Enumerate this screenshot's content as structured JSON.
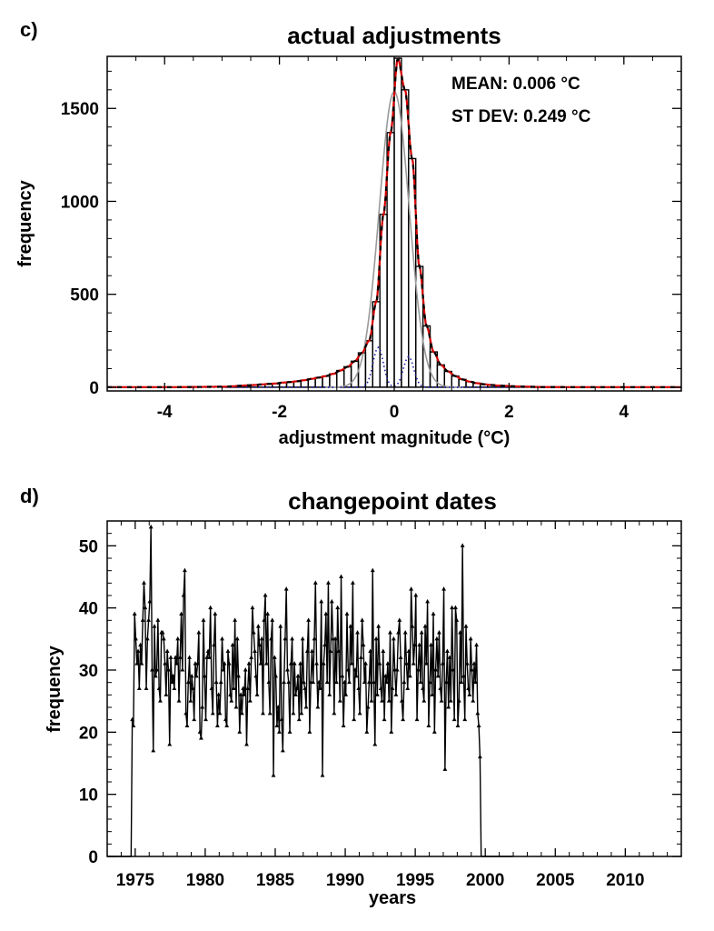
{
  "colors": {
    "axis": "#000000",
    "histogram": "#000000",
    "fit_total": "#d40000",
    "fit_dashes": "#000000",
    "gaussian_core": "#9a9a9a",
    "dotted_components": "#1a1aa8",
    "timeseries": "#000000"
  },
  "chart_data": [
    {
      "panel": "c)",
      "type": "bar",
      "title": "actual adjustments",
      "xlabel": "adjustment magnitude (°C)",
      "ylabel": "frequency",
      "xlim": [
        -5,
        5
      ],
      "ylim": [
        -20,
        1780
      ],
      "xticks": [
        -4,
        -2,
        0,
        2,
        4
      ],
      "yticks": [
        0,
        500,
        1000,
        1500
      ],
      "grid": false,
      "annotations": [
        "MEAN:  0.006 °C",
        "ST DEV:  0.249 °C"
      ],
      "bin_width": 0.125,
      "bins_left_edge": [
        -3.0,
        -2.875,
        -2.75,
        -2.625,
        -2.5,
        -2.375,
        -2.25,
        -2.125,
        -2.0,
        -1.875,
        -1.75,
        -1.625,
        -1.5,
        -1.375,
        -1.25,
        -1.125,
        -1.0,
        -0.875,
        -0.75,
        -0.625,
        -0.5,
        -0.375,
        -0.25,
        -0.125,
        0.0,
        0.125,
        0.25,
        0.375,
        0.5,
        0.625,
        0.75,
        0.875,
        1.0,
        1.125,
        1.25,
        1.375,
        1.5,
        1.625,
        1.75,
        1.875,
        2.0,
        2.125,
        2.25,
        2.375,
        2.5
      ],
      "histogram_counts": [
        3,
        5,
        8,
        10,
        12,
        15,
        18,
        20,
        25,
        28,
        32,
        38,
        45,
        52,
        60,
        72,
        90,
        110,
        140,
        185,
        250,
        460,
        930,
        1370,
        1770,
        1600,
        1230,
        650,
        330,
        190,
        120,
        85,
        60,
        42,
        30,
        22,
        16,
        12,
        9,
        7,
        5,
        4,
        3,
        2,
        1
      ],
      "gaussian_core": {
        "mean": 0.0,
        "sd": 0.26,
        "peak": 1590
      },
      "dotted_components": [
        {
          "mean": -0.28,
          "sd": 0.09,
          "peak": 215
        },
        {
          "mean": 0.25,
          "sd": 0.09,
          "peak": 165
        }
      ]
    },
    {
      "panel": "d)",
      "type": "line",
      "title": "changepoint dates",
      "xlabel": "years",
      "ylabel": "frequency",
      "xlim": [
        1973,
        2014
      ],
      "ylim": [
        0,
        54
      ],
      "xticks": [
        1975,
        1980,
        1985,
        1990,
        1995,
        2000,
        2005,
        2010
      ],
      "yticks": [
        0,
        10,
        20,
        30,
        40,
        50
      ],
      "grid": false,
      "start_year": 1973,
      "points_per_year": 12,
      "monthly_counts": [
        0,
        0,
        0,
        0,
        0,
        0,
        0,
        0,
        0,
        0,
        0,
        0,
        0,
        0,
        0,
        0,
        0,
        0,
        0,
        0,
        0,
        22,
        21,
        39,
        35,
        31,
        33,
        27,
        34,
        31,
        38,
        44,
        40,
        27,
        35,
        38,
        41,
        53,
        30,
        17,
        37,
        29,
        30,
        38,
        27,
        25,
        36,
        36,
        35,
        31,
        26,
        33,
        30,
        18,
        32,
        28,
        29,
        27,
        32,
        31,
        35,
        25,
        32,
        39,
        30,
        42,
        46,
        23,
        21,
        28,
        32,
        25,
        29,
        27,
        22,
        31,
        29,
        31,
        36,
        20,
        19,
        24,
        38,
        29,
        22,
        32,
        33,
        32,
        40,
        27,
        23,
        34,
        39,
        28,
        21,
        26,
        23,
        28,
        35,
        30,
        31,
        22,
        21,
        33,
        31,
        26,
        25,
        34,
        27,
        38,
        24,
        35,
        29,
        20,
        26,
        23,
        27,
        26,
        30,
        18,
        27,
        31,
        25,
        32,
        40,
        36,
        33,
        29,
        26,
        37,
        34,
        31,
        35,
        23,
        38,
        42,
        31,
        39,
        28,
        23,
        35,
        38,
        13,
        32,
        29,
        21,
        24,
        20,
        37,
        22,
        17,
        28,
        35,
        43,
        30,
        28,
        20,
        31,
        35,
        23,
        31,
        26,
        27,
        29,
        22,
        31,
        23,
        35,
        28,
        27,
        24,
        33,
        38,
        20,
        28,
        33,
        28,
        35,
        44,
        31,
        24,
        28,
        27,
        41,
        13,
        31,
        34,
        39,
        28,
        44,
        26,
        33,
        41,
        35,
        23,
        35,
        28,
        40,
        33,
        25,
        45,
        29,
        21,
        28,
        26,
        39,
        30,
        28,
        37,
        31,
        44,
        22,
        30,
        29,
        36,
        27,
        23,
        32,
        38,
        34,
        28,
        31,
        20,
        24,
        28,
        33,
        25,
        46,
        28,
        18,
        35,
        26,
        37,
        31,
        27,
        25,
        33,
        22,
        29,
        28,
        31,
        25,
        36,
        20,
        27,
        35,
        30,
        26,
        30,
        36,
        38,
        32,
        25,
        22,
        28,
        36,
        31,
        27,
        33,
        29,
        43,
        37,
        31,
        34,
        42,
        22,
        30,
        34,
        28,
        36,
        27,
        25,
        37,
        31,
        41,
        21,
        28,
        34,
        26,
        39,
        20,
        30,
        35,
        29,
        36,
        27,
        25,
        31,
        43,
        14,
        28,
        33,
        24,
        32,
        25,
        40,
        30,
        22,
        40,
        38,
        21,
        25,
        36,
        28,
        50,
        29,
        22,
        37,
        31,
        27,
        26,
        35,
        30,
        25,
        31,
        28,
        34,
        23,
        21,
        16,
        0,
        0,
        0,
        0,
        0,
        0,
        0,
        0,
        0,
        0,
        0,
        0,
        0,
        0,
        0,
        0,
        0,
        0,
        0,
        0,
        0,
        0,
        0,
        0,
        0,
        0,
        0,
        0
      ]
    }
  ]
}
